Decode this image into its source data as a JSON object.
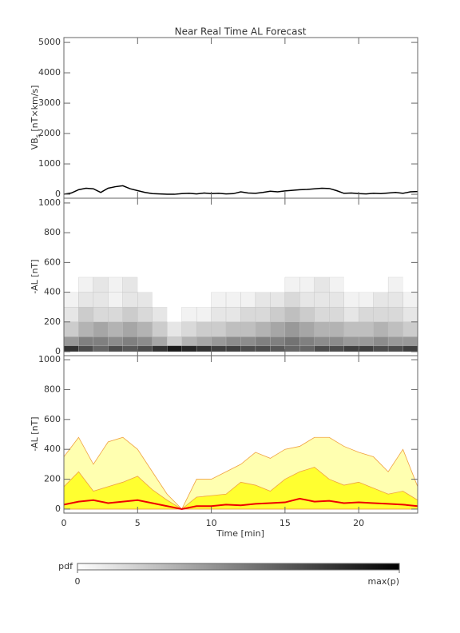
{
  "chart_data": [
    {
      "type": "line",
      "title": "Near Real Time AL Forecast",
      "ylabel": {
        "main": "VB",
        "sub": "s",
        "unit": " [nT×km/s]"
      },
      "x": [
        0,
        0.5,
        1,
        1.5,
        2,
        2.5,
        3,
        3.5,
        4,
        4.5,
        5,
        5.5,
        6,
        6.5,
        7,
        7.5,
        8,
        8.5,
        9,
        9.5,
        10,
        10.5,
        11,
        11.5,
        12,
        12.5,
        13,
        13.5,
        14,
        14.5,
        15,
        15.5,
        16,
        16.5,
        17,
        17.5,
        18,
        18.5,
        19,
        19.5,
        20,
        20.5,
        21,
        21.5,
        22,
        22.5,
        23,
        23.5,
        24
      ],
      "values": [
        0,
        40,
        150,
        200,
        180,
        60,
        200,
        250,
        280,
        180,
        120,
        60,
        20,
        10,
        0,
        0,
        20,
        30,
        10,
        40,
        20,
        30,
        10,
        20,
        80,
        40,
        30,
        60,
        100,
        80,
        110,
        130,
        150,
        160,
        180,
        200,
        190,
        120,
        30,
        40,
        20,
        10,
        30,
        20,
        40,
        60,
        30,
        80,
        90
      ],
      "color": "#000000",
      "xlim": [
        0,
        24
      ],
      "xticks": [
        0,
        5,
        10,
        15,
        20
      ],
      "ylim": [
        -130,
        5160
      ],
      "yticks": [
        0,
        1000,
        2000,
        3000,
        4000,
        5000
      ]
    },
    {
      "type": "heatmap",
      "ylabel": "-AL [nT]",
      "x_bins": [
        0,
        1,
        2,
        3,
        4,
        5,
        6,
        7,
        8,
        9,
        10,
        11,
        12,
        13,
        14,
        15,
        16,
        17,
        18,
        19,
        20,
        21,
        22,
        23,
        24
      ],
      "y_bins": [
        0,
        40,
        100,
        200,
        300,
        400,
        500
      ],
      "values": [
        [
          0.8,
          0.4,
          0.2,
          0.1,
          0.05,
          0
        ],
        [
          0.7,
          0.5,
          0.3,
          0.2,
          0.1,
          0.05
        ],
        [
          0.6,
          0.5,
          0.35,
          0.15,
          0.1,
          0.1
        ],
        [
          0.7,
          0.45,
          0.3,
          0.15,
          0.05,
          0.05
        ],
        [
          0.65,
          0.5,
          0.35,
          0.2,
          0.1,
          0.1
        ],
        [
          0.7,
          0.45,
          0.3,
          0.15,
          0.1,
          0
        ],
        [
          0.8,
          0.35,
          0.2,
          0.1,
          0,
          0
        ],
        [
          0.9,
          0.2,
          0.1,
          0,
          0,
          0
        ],
        [
          0.85,
          0.3,
          0.15,
          0.05,
          0,
          0
        ],
        [
          0.8,
          0.35,
          0.2,
          0.05,
          0,
          0
        ],
        [
          0.75,
          0.4,
          0.2,
          0.1,
          0.05,
          0
        ],
        [
          0.75,
          0.45,
          0.25,
          0.1,
          0.05,
          0
        ],
        [
          0.7,
          0.45,
          0.25,
          0.15,
          0.05,
          0
        ],
        [
          0.7,
          0.5,
          0.3,
          0.15,
          0.1,
          0
        ],
        [
          0.65,
          0.5,
          0.35,
          0.2,
          0.1,
          0
        ],
        [
          0.6,
          0.55,
          0.4,
          0.25,
          0.15,
          0.05
        ],
        [
          0.6,
          0.5,
          0.35,
          0.2,
          0.1,
          0.05
        ],
        [
          0.7,
          0.45,
          0.3,
          0.15,
          0.1,
          0.1
        ],
        [
          0.7,
          0.45,
          0.3,
          0.15,
          0.1,
          0.05
        ],
        [
          0.75,
          0.4,
          0.25,
          0.1,
          0.05,
          0
        ],
        [
          0.75,
          0.4,
          0.25,
          0.15,
          0.05,
          0
        ],
        [
          0.7,
          0.45,
          0.3,
          0.15,
          0.1,
          0
        ],
        [
          0.7,
          0.4,
          0.25,
          0.15,
          0.1,
          0.05
        ],
        [
          0.75,
          0.4,
          0.2,
          0.1,
          0.05,
          0
        ]
      ],
      "xlim": [
        0,
        24
      ],
      "xticks": [
        0,
        5,
        10,
        15,
        20
      ],
      "ylim": [
        -27,
        1032
      ],
      "yticks": [
        0,
        200,
        400,
        600,
        800,
        1000
      ]
    },
    {
      "type": "band",
      "ylabel": "-AL [nT]",
      "xlabel": "Time [min]",
      "x": [
        0,
        1,
        2,
        3,
        4,
        5,
        6,
        7,
        8,
        9,
        10,
        11,
        12,
        13,
        14,
        15,
        16,
        17,
        18,
        19,
        20,
        21,
        22,
        23,
        24
      ],
      "outer": {
        "color": "#ffffb0",
        "values": [
          350,
          480,
          300,
          450,
          480,
          400,
          250,
          100,
          0,
          200,
          200,
          250,
          300,
          380,
          340,
          400,
          420,
          480,
          480,
          420,
          380,
          350,
          250,
          400,
          150
        ]
      },
      "inner": {
        "color": "#ffff30",
        "values": [
          150,
          250,
          120,
          150,
          180,
          220,
          130,
          60,
          0,
          80,
          90,
          100,
          180,
          160,
          120,
          200,
          250,
          280,
          200,
          160,
          180,
          140,
          100,
          120,
          60
        ]
      },
      "median": {
        "color": "#ee0000",
        "values": [
          30,
          50,
          60,
          40,
          50,
          60,
          40,
          20,
          0,
          20,
          20,
          30,
          25,
          35,
          40,
          45,
          70,
          50,
          55,
          40,
          45,
          40,
          35,
          30,
          20
        ]
      },
      "xlim": [
        0,
        24
      ],
      "xticks": [
        0,
        5,
        10,
        15,
        20
      ],
      "ylim": [
        -27,
        1027
      ],
      "yticks": [
        0,
        200,
        400,
        600,
        800,
        1000
      ]
    },
    {
      "type": "colorbar",
      "label": "pdf",
      "clim": [
        0,
        1
      ],
      "cticks": [
        0,
        {
          "value": 1,
          "label": "max(p)"
        }
      ]
    }
  ]
}
